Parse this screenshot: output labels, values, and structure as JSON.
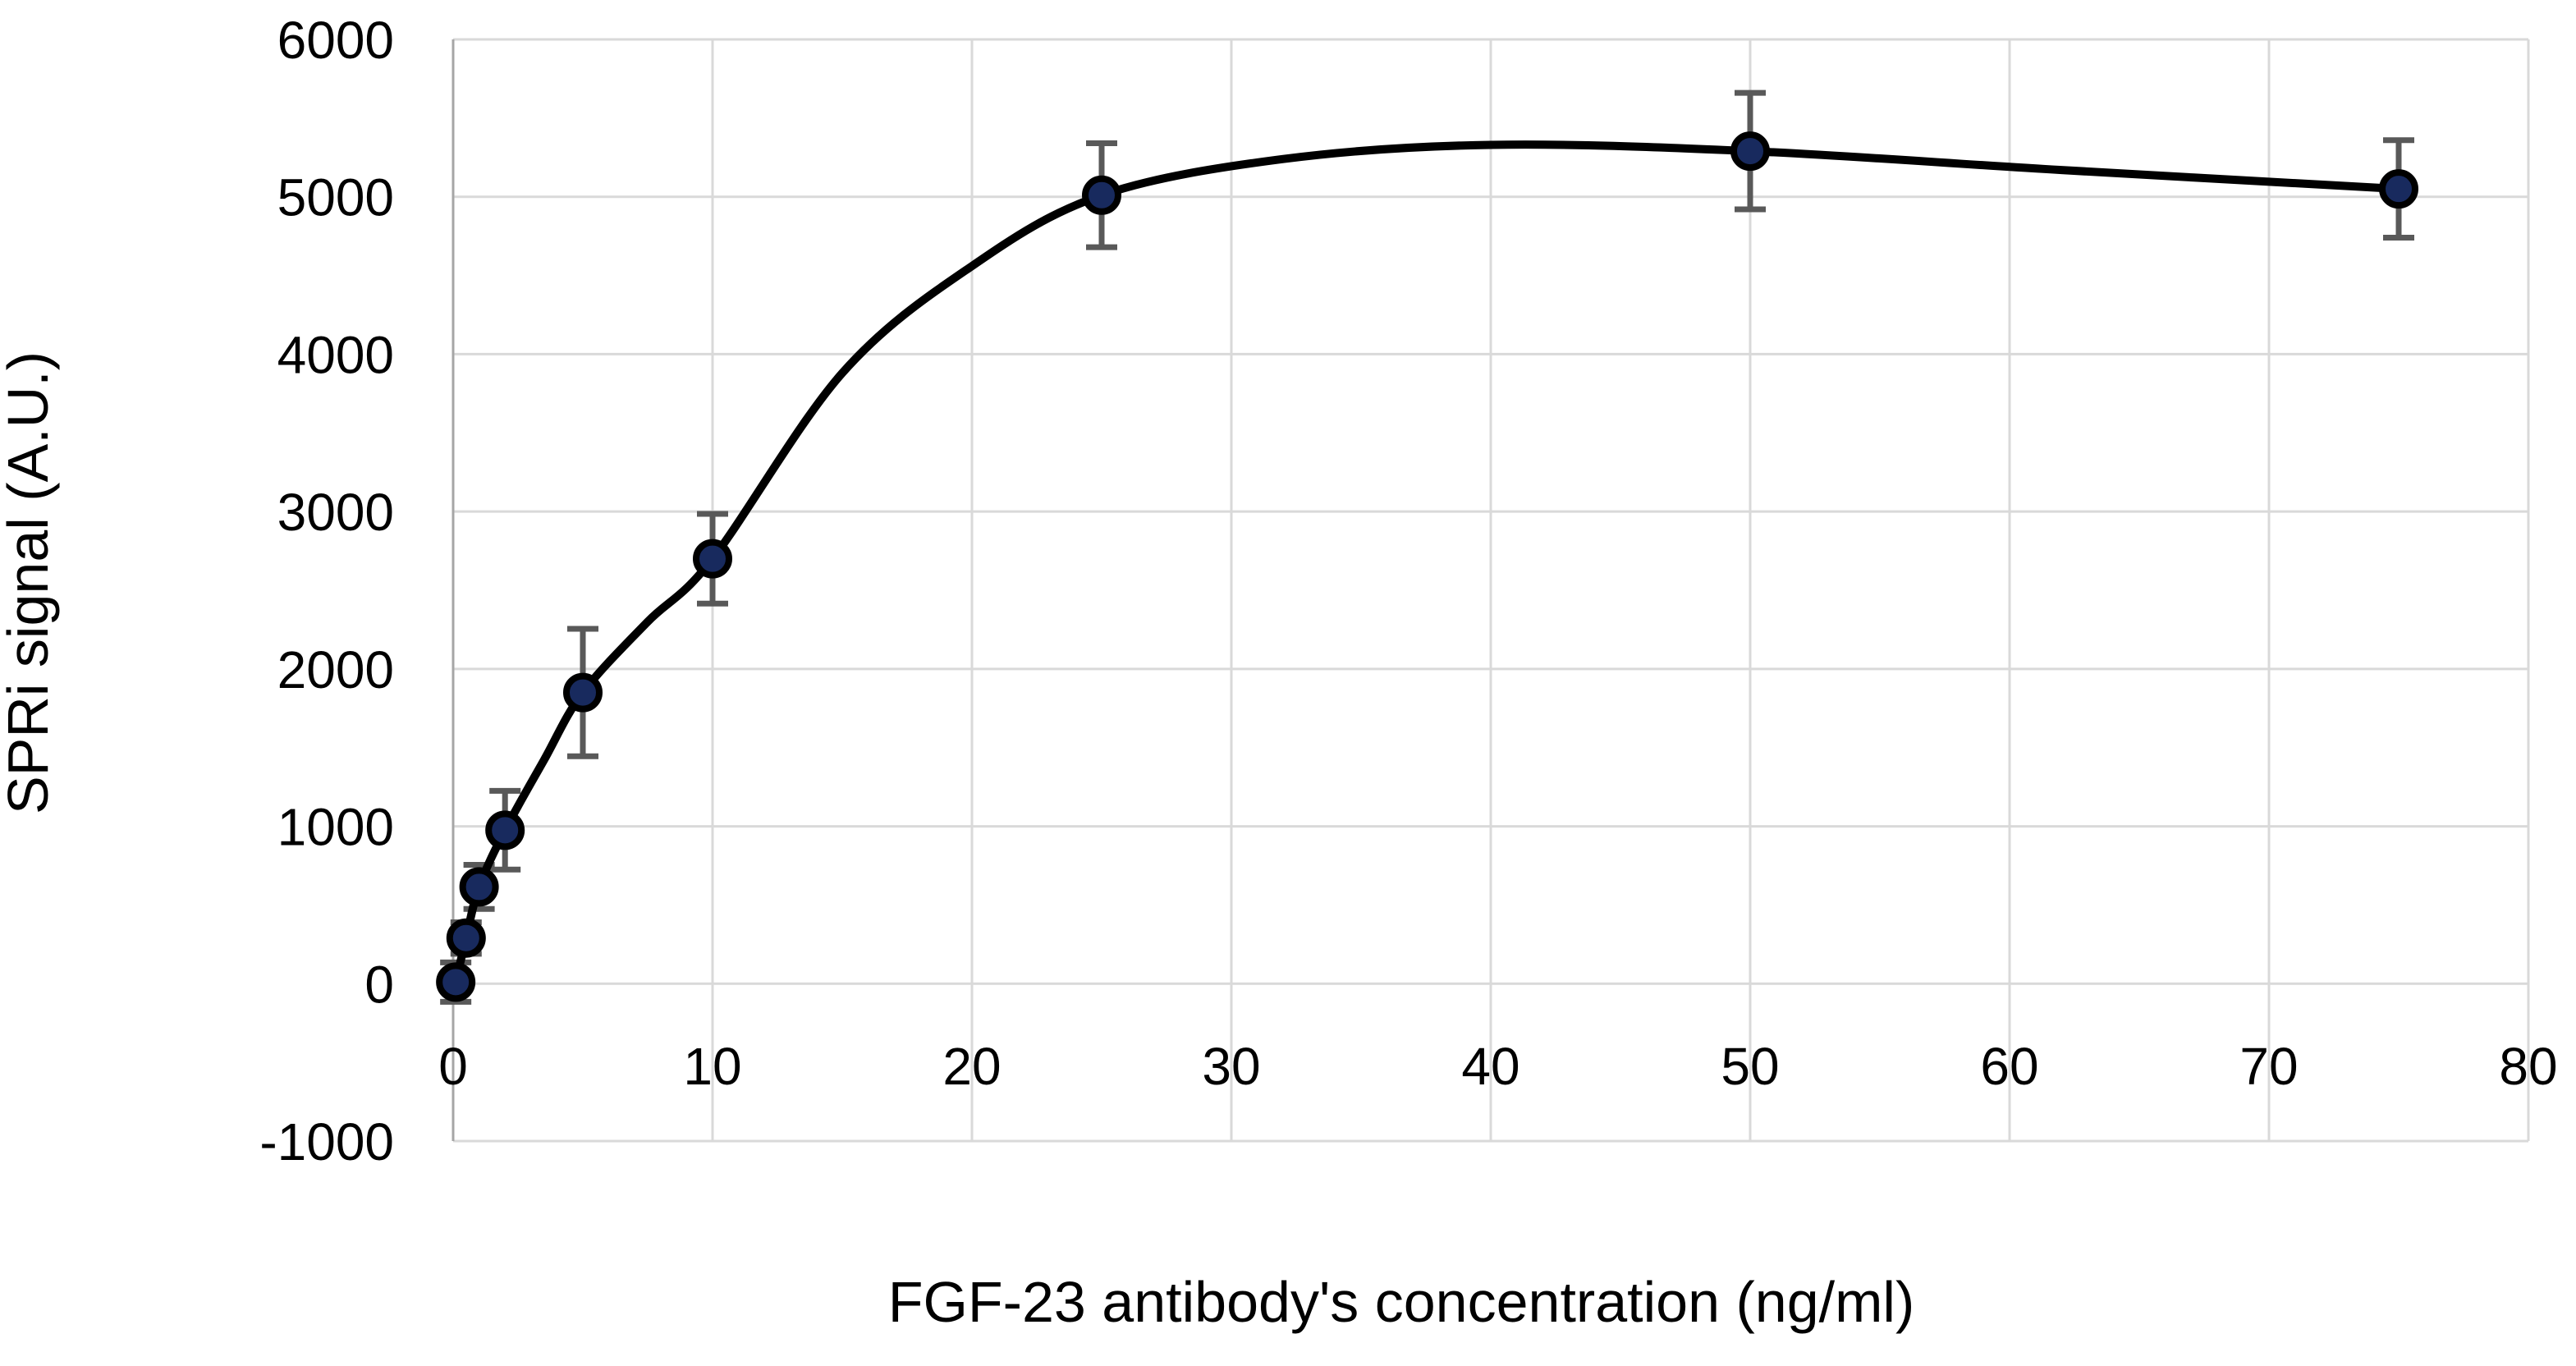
{
  "figure": {
    "background": "#ffffff"
  },
  "chart_data": {
    "type": "line",
    "subtype": "scatter-with-smooth-fit-and-error-bars",
    "title": "",
    "xlabel": "FGF-23 antibody's concentration (ng/ml)",
    "ylabel": "SPRi signal (A.U.)",
    "xlim": [
      0,
      80
    ],
    "ylim": [
      -1000,
      6000
    ],
    "xticks": [
      0,
      10,
      20,
      30,
      40,
      50,
      60,
      70,
      80
    ],
    "yticks": [
      -1000,
      0,
      1000,
      2000,
      3000,
      4000,
      5000,
      6000
    ],
    "grid": true,
    "legend": "none",
    "series": [
      {
        "name": "SPRi signal",
        "marker": "circle",
        "x": [
          0.1,
          0.5,
          1,
          2,
          5,
          10,
          25,
          50,
          75
        ],
        "y": [
          10,
          290,
          615,
          975,
          1850,
          2700,
          5010,
          5290,
          5050
        ],
        "yerr": [
          125,
          100,
          140,
          250,
          405,
          285,
          330,
          370,
          310
        ]
      }
    ],
    "fit_curve": {
      "description": "smooth saturation-binding trendline drawn through the data, plateau ~5330 near x=40",
      "points": [
        [
          0.1,
          10
        ],
        [
          0.5,
          290
        ],
        [
          1,
          615
        ],
        [
          2,
          975
        ],
        [
          3.5,
          1420
        ],
        [
          5,
          1850
        ],
        [
          7.5,
          2300
        ],
        [
          10,
          2700
        ],
        [
          15,
          3880
        ],
        [
          20,
          4560
        ],
        [
          25,
          5010
        ],
        [
          32,
          5240
        ],
        [
          40,
          5330
        ],
        [
          50,
          5290
        ],
        [
          62,
          5170
        ],
        [
          75,
          5050
        ]
      ]
    },
    "colors": {
      "marker_fill": "#182a5e",
      "marker_stroke": "#000000",
      "line": "#000000",
      "error_bar": "#595959",
      "gridline": "#d9d9d9",
      "axis_line": "#a6a6a6",
      "text": "#000000"
    }
  }
}
